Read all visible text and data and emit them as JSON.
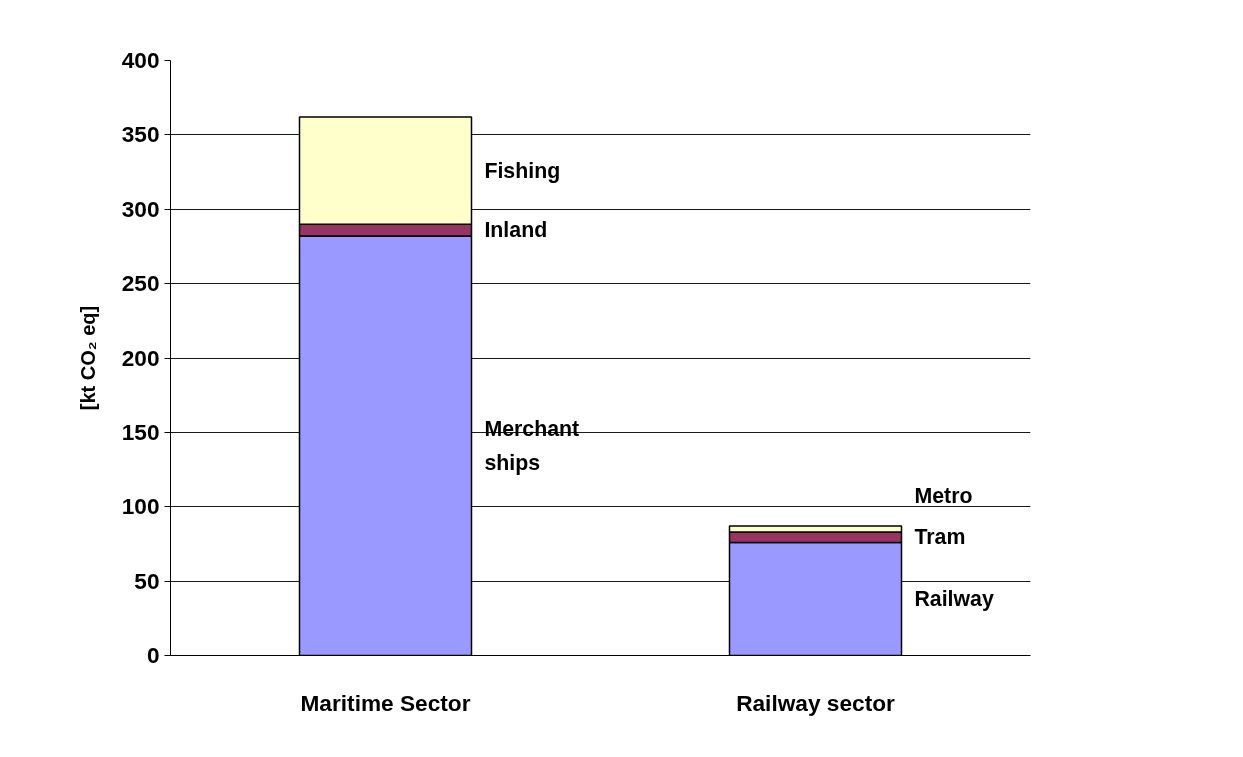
{
  "chart_data": {
    "type": "bar",
    "stacked": true,
    "ylabel": "[kt CO₂ eq]",
    "categories": [
      "Maritime Sector",
      "Railway sector"
    ],
    "series": [
      {
        "color": "#9999ff",
        "values": [
          282,
          76
        ]
      },
      {
        "color": "#993366",
        "values": [
          8,
          7
        ]
      },
      {
        "color": "#ffffcc",
        "values": [
          72,
          4
        ]
      }
    ],
    "ylim": [
      0,
      400
    ],
    "yticks": [
      0,
      50,
      100,
      150,
      200,
      250,
      300,
      350,
      400
    ],
    "grid": "y",
    "annotations": [
      "Fishing",
      "Inland",
      "Merchant\nships",
      "Metro",
      "Tram",
      "Railway"
    ]
  }
}
